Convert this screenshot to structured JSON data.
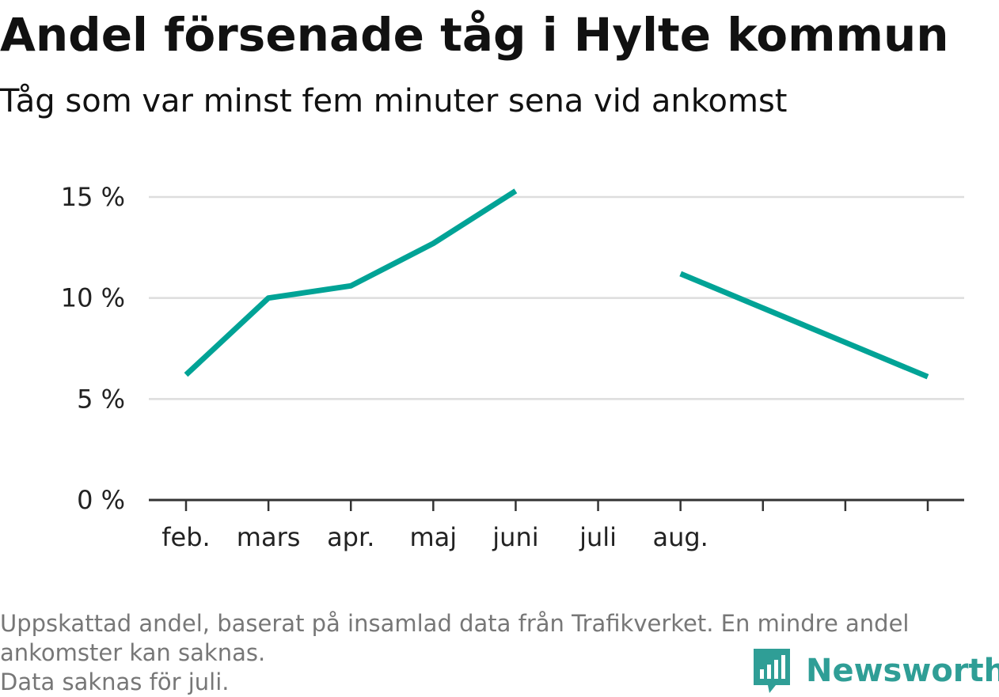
{
  "title": "Andel försenade tåg i Hylte kommun",
  "subtitle": "Tåg som var minst fem minuter sena vid ankomst",
  "notes": [
    "Uppskattad andel, baserat på insamlad data från Trafikverket. En mindre andel ankomster kan saknas.",
    "Data saknas för juli."
  ],
  "brand": {
    "name": "Newsworthy",
    "logo_icon": "newsworthy-logo-icon"
  },
  "colors": {
    "line": "#00a396",
    "grid": "#dddddd",
    "axis": "#333333",
    "brand": "#2f9e96"
  },
  "chart_data": {
    "type": "line",
    "categories": [
      "feb.",
      "mars",
      "apr.",
      "maj",
      "juni",
      "juli",
      "aug.",
      "",
      "",
      ""
    ],
    "series": [
      {
        "values": [
          6.2,
          10.0,
          10.6,
          12.7,
          15.3,
          null,
          11.2,
          9.5,
          7.8,
          6.1
        ]
      }
    ],
    "yticks": [
      0,
      5,
      10,
      15
    ],
    "ytick_labels": [
      "0 %",
      "5 %",
      "10 %",
      "15 %"
    ],
    "ylim": [
      0,
      15
    ],
    "xlabel": "",
    "ylabel": "",
    "grid": true,
    "legend": "none"
  }
}
